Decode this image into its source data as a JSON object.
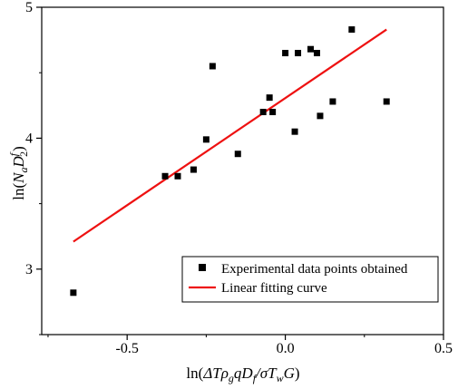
{
  "chart_data": {
    "type": "scatter",
    "xlabel": "ln(ΔTρgqDf/σTwG)",
    "ylabel": "ln(NaD²f)",
    "xlim": [
      -0.77,
      0.5
    ],
    "ylim": [
      2.5,
      5.0
    ],
    "x_ticks": [
      -0.5,
      0.0,
      0.5
    ],
    "x_tick_labels": [
      "-0.5",
      "0.0",
      "0.5"
    ],
    "y_ticks": [
      3,
      4,
      5
    ],
    "y_tick_labels": [
      "3",
      "4",
      "5"
    ],
    "grid": false,
    "legend_position": "bottom-right",
    "series": [
      {
        "name": "Experimental data points obtained",
        "kind": "scatter",
        "marker": "square",
        "color": "#000000",
        "points": [
          [
            -0.67,
            2.82
          ],
          [
            -0.38,
            3.71
          ],
          [
            -0.34,
            3.71
          ],
          [
            -0.29,
            3.76
          ],
          [
            -0.25,
            3.99
          ],
          [
            -0.23,
            4.55
          ],
          [
            -0.15,
            3.88
          ],
          [
            -0.07,
            4.2
          ],
          [
            -0.05,
            4.31
          ],
          [
            -0.04,
            4.2
          ],
          [
            0.0,
            4.65
          ],
          [
            0.03,
            4.05
          ],
          [
            0.04,
            4.65
          ],
          [
            0.08,
            4.68
          ],
          [
            0.1,
            4.65
          ],
          [
            0.11,
            4.17
          ],
          [
            0.15,
            4.28
          ],
          [
            0.21,
            4.83
          ],
          [
            0.32,
            4.28
          ]
        ]
      },
      {
        "name": "Linear fitting curve",
        "kind": "line",
        "color": "#ee1111",
        "points": [
          [
            -0.67,
            3.21
          ],
          [
            0.32,
            4.83
          ]
        ]
      }
    ]
  }
}
